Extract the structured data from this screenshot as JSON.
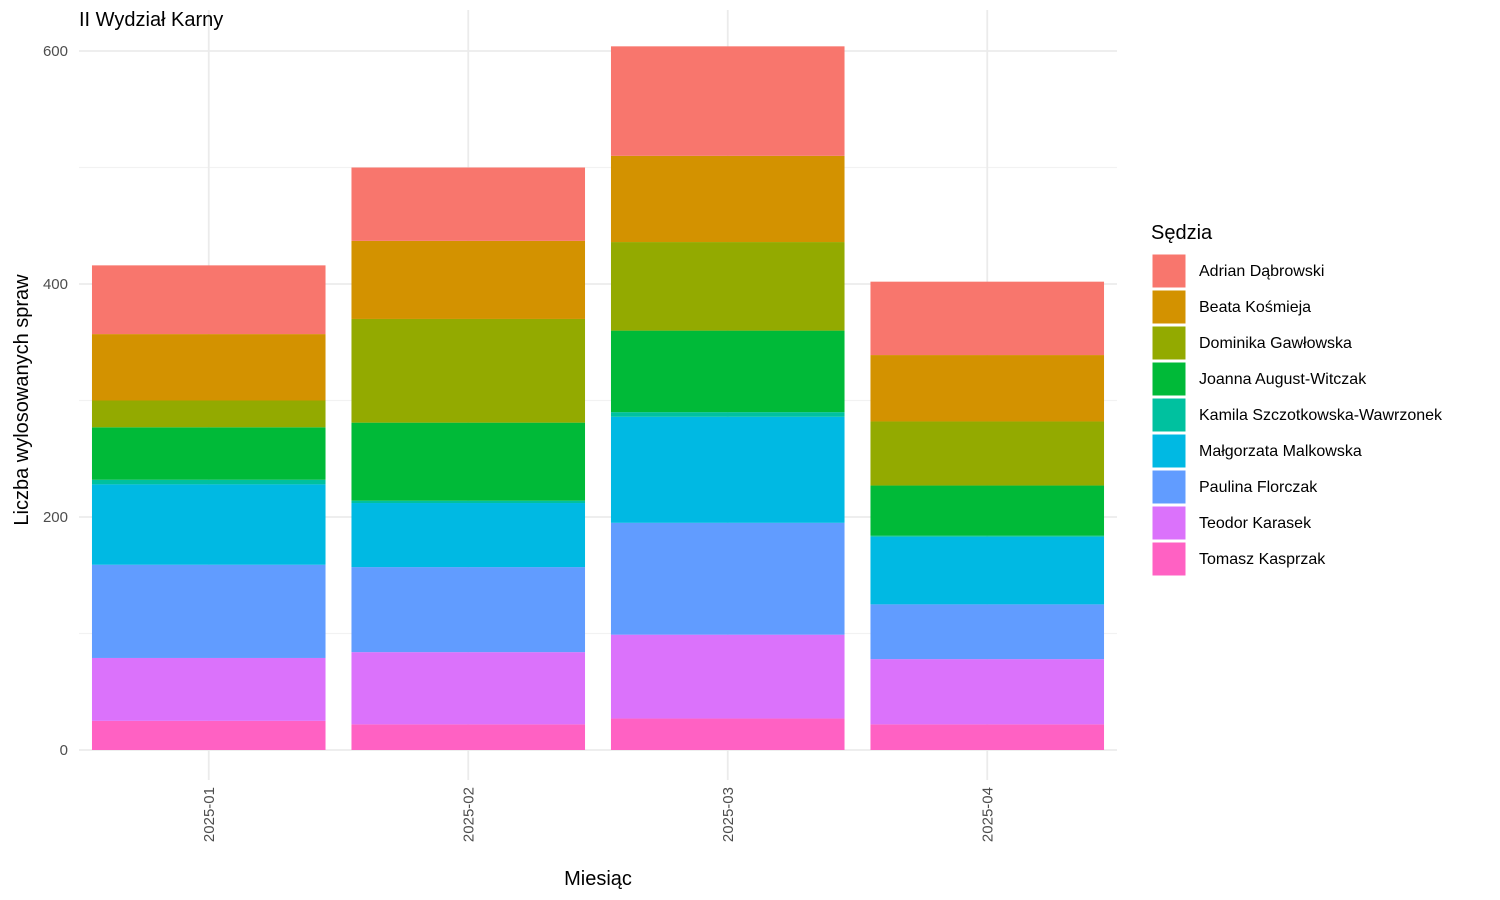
{
  "chart_data": {
    "type": "bar",
    "stacked": true,
    "title": "II Wydział Karny",
    "xlabel": "Miesiąc",
    "ylabel": "Liczba wylosowanych spraw",
    "ylim": [
      0,
      620
    ],
    "yticks": [
      0,
      200,
      400,
      600
    ],
    "grid": true,
    "legend_title": "Sędzia",
    "legend_position": "right",
    "categories": [
      "2025-01",
      "2025-02",
      "2025-03",
      "2025-04"
    ],
    "series": [
      {
        "name": "Tomasz Kasprzak",
        "color": "#FF61C3",
        "values": [
          25,
          22,
          27,
          22
        ]
      },
      {
        "name": "Teodor Karasek",
        "color": "#DB72FB",
        "values": [
          54,
          62,
          72,
          56
        ]
      },
      {
        "name": "Paulina Florczak",
        "color": "#619CFF",
        "values": [
          80,
          73,
          96,
          47
        ]
      },
      {
        "name": "Małgorzata Malkowska",
        "color": "#00B9E3",
        "values": [
          69,
          55,
          91,
          58
        ]
      },
      {
        "name": "Kamila Szczotkowska-Wawrzonek",
        "color": "#00C19F",
        "values": [
          4,
          2,
          4,
          1
        ]
      },
      {
        "name": "Joanna August-Witczak",
        "color": "#00BA38",
        "values": [
          45,
          67,
          70,
          43
        ]
      },
      {
        "name": "Dominika Gawłowska",
        "color": "#93AA00",
        "values": [
          23,
          89,
          76,
          55
        ]
      },
      {
        "name": "Beata Kośmieja",
        "color": "#D39200",
        "values": [
          57,
          67,
          74,
          57
        ]
      },
      {
        "name": "Adrian Dąbrowski",
        "color": "#F8766D",
        "values": [
          59,
          63,
          94,
          63
        ]
      }
    ],
    "legend_order": [
      "Adrian Dąbrowski",
      "Beata Kośmieja",
      "Dominika Gawłowska",
      "Joanna August-Witczak",
      "Kamila Szczotkowska-Wawrzonek",
      "Małgorzata Malkowska",
      "Paulina Florczak",
      "Teodor Karasek",
      "Tomasz Kasprzak"
    ]
  }
}
